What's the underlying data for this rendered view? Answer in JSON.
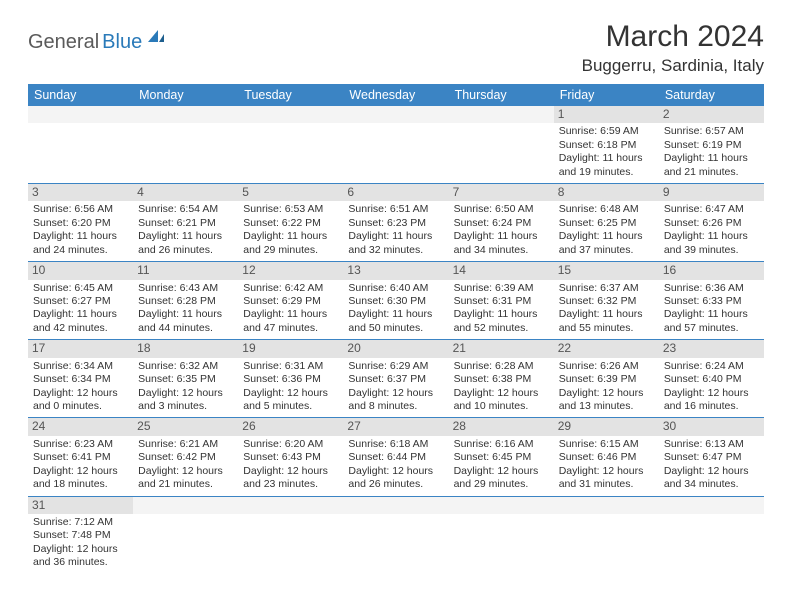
{
  "logo": {
    "text1": "General",
    "text2": "Blue"
  },
  "title": "March 2024",
  "location": "Buggerru, Sardinia, Italy",
  "colors": {
    "header_bg": "#3b84c4",
    "header_text": "#ffffff",
    "daynum_bg": "#e3e3e3",
    "border": "#3b84c4",
    "logo_blue": "#2a7ab9",
    "logo_gray": "#5a5a5a",
    "text": "#333333"
  },
  "weekdays": [
    "Sunday",
    "Monday",
    "Tuesday",
    "Wednesday",
    "Thursday",
    "Friday",
    "Saturday"
  ],
  "weeks": [
    [
      {
        "day": "",
        "sunrise": "",
        "sunset": "",
        "daylight1": "",
        "daylight2": "",
        "empty": true
      },
      {
        "day": "",
        "sunrise": "",
        "sunset": "",
        "daylight1": "",
        "daylight2": "",
        "empty": true
      },
      {
        "day": "",
        "sunrise": "",
        "sunset": "",
        "daylight1": "",
        "daylight2": "",
        "empty": true
      },
      {
        "day": "",
        "sunrise": "",
        "sunset": "",
        "daylight1": "",
        "daylight2": "",
        "empty": true
      },
      {
        "day": "",
        "sunrise": "",
        "sunset": "",
        "daylight1": "",
        "daylight2": "",
        "empty": true
      },
      {
        "day": "1",
        "sunrise": "Sunrise: 6:59 AM",
        "sunset": "Sunset: 6:18 PM",
        "daylight1": "Daylight: 11 hours",
        "daylight2": "and 19 minutes."
      },
      {
        "day": "2",
        "sunrise": "Sunrise: 6:57 AM",
        "sunset": "Sunset: 6:19 PM",
        "daylight1": "Daylight: 11 hours",
        "daylight2": "and 21 minutes."
      }
    ],
    [
      {
        "day": "3",
        "sunrise": "Sunrise: 6:56 AM",
        "sunset": "Sunset: 6:20 PM",
        "daylight1": "Daylight: 11 hours",
        "daylight2": "and 24 minutes."
      },
      {
        "day": "4",
        "sunrise": "Sunrise: 6:54 AM",
        "sunset": "Sunset: 6:21 PM",
        "daylight1": "Daylight: 11 hours",
        "daylight2": "and 26 minutes."
      },
      {
        "day": "5",
        "sunrise": "Sunrise: 6:53 AM",
        "sunset": "Sunset: 6:22 PM",
        "daylight1": "Daylight: 11 hours",
        "daylight2": "and 29 minutes."
      },
      {
        "day": "6",
        "sunrise": "Sunrise: 6:51 AM",
        "sunset": "Sunset: 6:23 PM",
        "daylight1": "Daylight: 11 hours",
        "daylight2": "and 32 minutes."
      },
      {
        "day": "7",
        "sunrise": "Sunrise: 6:50 AM",
        "sunset": "Sunset: 6:24 PM",
        "daylight1": "Daylight: 11 hours",
        "daylight2": "and 34 minutes."
      },
      {
        "day": "8",
        "sunrise": "Sunrise: 6:48 AM",
        "sunset": "Sunset: 6:25 PM",
        "daylight1": "Daylight: 11 hours",
        "daylight2": "and 37 minutes."
      },
      {
        "day": "9",
        "sunrise": "Sunrise: 6:47 AM",
        "sunset": "Sunset: 6:26 PM",
        "daylight1": "Daylight: 11 hours",
        "daylight2": "and 39 minutes."
      }
    ],
    [
      {
        "day": "10",
        "sunrise": "Sunrise: 6:45 AM",
        "sunset": "Sunset: 6:27 PM",
        "daylight1": "Daylight: 11 hours",
        "daylight2": "and 42 minutes."
      },
      {
        "day": "11",
        "sunrise": "Sunrise: 6:43 AM",
        "sunset": "Sunset: 6:28 PM",
        "daylight1": "Daylight: 11 hours",
        "daylight2": "and 44 minutes."
      },
      {
        "day": "12",
        "sunrise": "Sunrise: 6:42 AM",
        "sunset": "Sunset: 6:29 PM",
        "daylight1": "Daylight: 11 hours",
        "daylight2": "and 47 minutes."
      },
      {
        "day": "13",
        "sunrise": "Sunrise: 6:40 AM",
        "sunset": "Sunset: 6:30 PM",
        "daylight1": "Daylight: 11 hours",
        "daylight2": "and 50 minutes."
      },
      {
        "day": "14",
        "sunrise": "Sunrise: 6:39 AM",
        "sunset": "Sunset: 6:31 PM",
        "daylight1": "Daylight: 11 hours",
        "daylight2": "and 52 minutes."
      },
      {
        "day": "15",
        "sunrise": "Sunrise: 6:37 AM",
        "sunset": "Sunset: 6:32 PM",
        "daylight1": "Daylight: 11 hours",
        "daylight2": "and 55 minutes."
      },
      {
        "day": "16",
        "sunrise": "Sunrise: 6:36 AM",
        "sunset": "Sunset: 6:33 PM",
        "daylight1": "Daylight: 11 hours",
        "daylight2": "and 57 minutes."
      }
    ],
    [
      {
        "day": "17",
        "sunrise": "Sunrise: 6:34 AM",
        "sunset": "Sunset: 6:34 PM",
        "daylight1": "Daylight: 12 hours",
        "daylight2": "and 0 minutes."
      },
      {
        "day": "18",
        "sunrise": "Sunrise: 6:32 AM",
        "sunset": "Sunset: 6:35 PM",
        "daylight1": "Daylight: 12 hours",
        "daylight2": "and 3 minutes."
      },
      {
        "day": "19",
        "sunrise": "Sunrise: 6:31 AM",
        "sunset": "Sunset: 6:36 PM",
        "daylight1": "Daylight: 12 hours",
        "daylight2": "and 5 minutes."
      },
      {
        "day": "20",
        "sunrise": "Sunrise: 6:29 AM",
        "sunset": "Sunset: 6:37 PM",
        "daylight1": "Daylight: 12 hours",
        "daylight2": "and 8 minutes."
      },
      {
        "day": "21",
        "sunrise": "Sunrise: 6:28 AM",
        "sunset": "Sunset: 6:38 PM",
        "daylight1": "Daylight: 12 hours",
        "daylight2": "and 10 minutes."
      },
      {
        "day": "22",
        "sunrise": "Sunrise: 6:26 AM",
        "sunset": "Sunset: 6:39 PM",
        "daylight1": "Daylight: 12 hours",
        "daylight2": "and 13 minutes."
      },
      {
        "day": "23",
        "sunrise": "Sunrise: 6:24 AM",
        "sunset": "Sunset: 6:40 PM",
        "daylight1": "Daylight: 12 hours",
        "daylight2": "and 16 minutes."
      }
    ],
    [
      {
        "day": "24",
        "sunrise": "Sunrise: 6:23 AM",
        "sunset": "Sunset: 6:41 PM",
        "daylight1": "Daylight: 12 hours",
        "daylight2": "and 18 minutes."
      },
      {
        "day": "25",
        "sunrise": "Sunrise: 6:21 AM",
        "sunset": "Sunset: 6:42 PM",
        "daylight1": "Daylight: 12 hours",
        "daylight2": "and 21 minutes."
      },
      {
        "day": "26",
        "sunrise": "Sunrise: 6:20 AM",
        "sunset": "Sunset: 6:43 PM",
        "daylight1": "Daylight: 12 hours",
        "daylight2": "and 23 minutes."
      },
      {
        "day": "27",
        "sunrise": "Sunrise: 6:18 AM",
        "sunset": "Sunset: 6:44 PM",
        "daylight1": "Daylight: 12 hours",
        "daylight2": "and 26 minutes."
      },
      {
        "day": "28",
        "sunrise": "Sunrise: 6:16 AM",
        "sunset": "Sunset: 6:45 PM",
        "daylight1": "Daylight: 12 hours",
        "daylight2": "and 29 minutes."
      },
      {
        "day": "29",
        "sunrise": "Sunrise: 6:15 AM",
        "sunset": "Sunset: 6:46 PM",
        "daylight1": "Daylight: 12 hours",
        "daylight2": "and 31 minutes."
      },
      {
        "day": "30",
        "sunrise": "Sunrise: 6:13 AM",
        "sunset": "Sunset: 6:47 PM",
        "daylight1": "Daylight: 12 hours",
        "daylight2": "and 34 minutes."
      }
    ],
    [
      {
        "day": "31",
        "sunrise": "Sunrise: 7:12 AM",
        "sunset": "Sunset: 7:48 PM",
        "daylight1": "Daylight: 12 hours",
        "daylight2": "and 36 minutes."
      },
      {
        "day": "",
        "sunrise": "",
        "sunset": "",
        "daylight1": "",
        "daylight2": "",
        "empty": true
      },
      {
        "day": "",
        "sunrise": "",
        "sunset": "",
        "daylight1": "",
        "daylight2": "",
        "empty": true
      },
      {
        "day": "",
        "sunrise": "",
        "sunset": "",
        "daylight1": "",
        "daylight2": "",
        "empty": true
      },
      {
        "day": "",
        "sunrise": "",
        "sunset": "",
        "daylight1": "",
        "daylight2": "",
        "empty": true
      },
      {
        "day": "",
        "sunrise": "",
        "sunset": "",
        "daylight1": "",
        "daylight2": "",
        "empty": true
      },
      {
        "day": "",
        "sunrise": "",
        "sunset": "",
        "daylight1": "",
        "daylight2": "",
        "empty": true
      }
    ]
  ]
}
